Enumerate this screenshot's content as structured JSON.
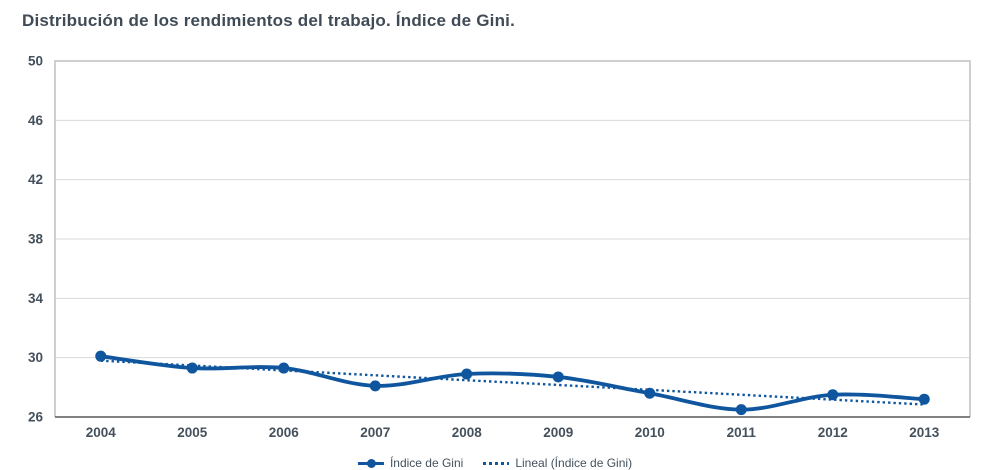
{
  "title": "Distribución de los rendimientos del trabajo. Índice de Gini.",
  "colors": {
    "series_blue": "#0F569E",
    "gridline": "#D9D9D9",
    "plot_border": "#BFBFBF",
    "axis_line": "#595959",
    "title_text": "#404B56",
    "tick_text": "#44515C",
    "background": "#FFFFFF"
  },
  "chart_data": {
    "type": "line",
    "title": "Distribución de los rendimientos del trabajo. Índice de Gini.",
    "categories": [
      "2004",
      "2005",
      "2006",
      "2007",
      "2008",
      "2009",
      "2010",
      "2011",
      "2012",
      "2013"
    ],
    "series": [
      {
        "name": "Índice de Gini",
        "style": "solid",
        "markers": true,
        "smooth": true,
        "color": "#0F569E",
        "values": [
          30.1,
          29.3,
          29.3,
          28.1,
          28.9,
          28.7,
          27.6,
          26.5,
          27.5,
          27.2
        ]
      },
      {
        "name": "Lineal (Índice de Gini)",
        "style": "dotted",
        "markers": false,
        "smooth": false,
        "color": "#0F569E",
        "trend_of": "Índice de Gini",
        "values": [
          29.8,
          29.47,
          29.14,
          28.81,
          28.48,
          28.16,
          27.83,
          27.5,
          27.17,
          26.84
        ]
      }
    ],
    "ylim": [
      26,
      50
    ],
    "yticks": [
      26,
      30,
      34,
      38,
      42,
      46,
      50
    ],
    "xlabel": "",
    "ylabel": "",
    "grid": "horizontal",
    "legend_position": "bottom, clipped at image edge"
  },
  "legend": {
    "items": [
      {
        "label": "Índice de Gini",
        "swatch": "solid-line-with-marker"
      },
      {
        "label": "Lineal (Índice de Gini)",
        "swatch": "dotted-line"
      }
    ]
  }
}
